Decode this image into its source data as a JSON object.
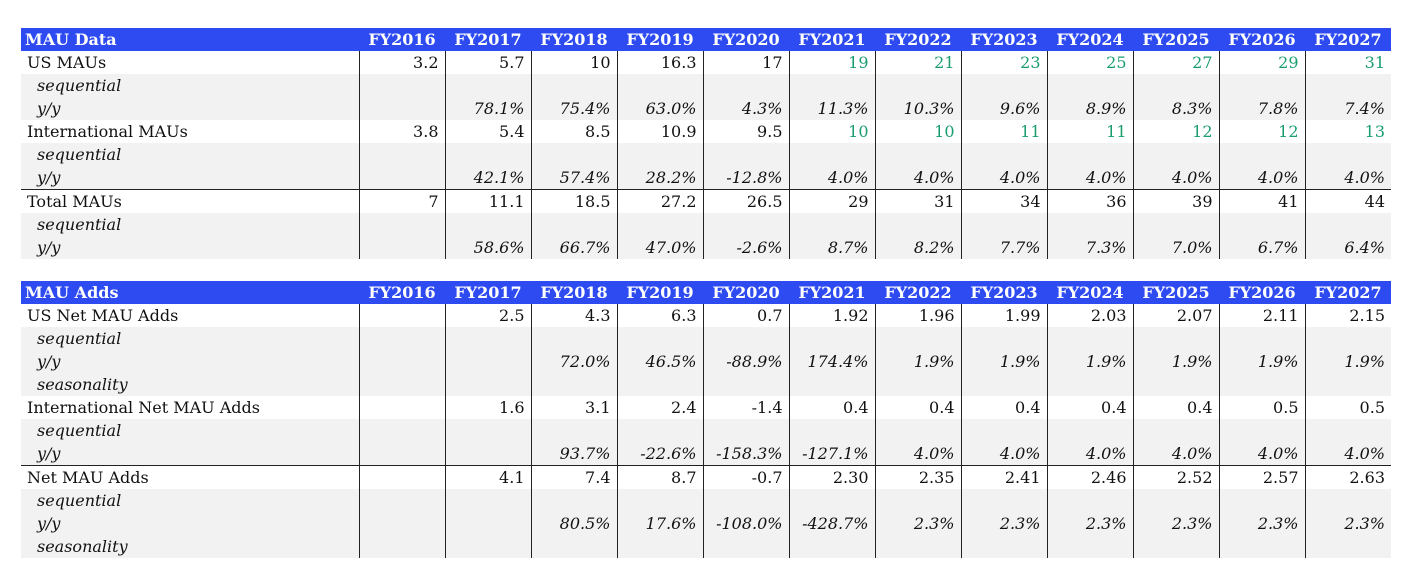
{
  "years": [
    "FY2016",
    "FY2017",
    "FY2018",
    "FY2019",
    "FY2020",
    "FY2021",
    "FY2022",
    "FY2023",
    "FY2024",
    "FY2025",
    "FY2026",
    "FY2027"
  ],
  "colors": {
    "header_bg": "#2e4bf2",
    "header_text": "#ffffff",
    "forecast_green": "#1a9e6e",
    "sub_row_bg": "#f2f2f2"
  },
  "mau_data": {
    "title": "MAU Data",
    "rows": [
      {
        "type": "main",
        "label": "US MAUs",
        "values": [
          "3.2",
          "5.7",
          "10",
          "16.3",
          "17",
          "19",
          "21",
          "23",
          "25",
          "27",
          "29",
          "31"
        ],
        "green_from": 5
      },
      {
        "type": "sub",
        "label": "sequential",
        "values": [
          "",
          "",
          "",
          "",
          "",
          "",
          "",
          "",
          "",
          "",
          "",
          ""
        ]
      },
      {
        "type": "sub",
        "label": "y/y",
        "values": [
          "",
          "78.1%",
          "75.4%",
          "63.0%",
          "4.3%",
          "11.3%",
          "10.3%",
          "9.6%",
          "8.9%",
          "8.3%",
          "7.8%",
          "7.4%"
        ]
      },
      {
        "type": "main",
        "label": "International MAUs",
        "values": [
          "3.8",
          "5.4",
          "8.5",
          "10.9",
          "9.5",
          "10",
          "10",
          "11",
          "11",
          "12",
          "12",
          "13"
        ],
        "green_from": 5
      },
      {
        "type": "sub",
        "label": "sequential",
        "values": [
          "",
          "",
          "",
          "",
          "",
          "",
          "",
          "",
          "",
          "",
          "",
          ""
        ]
      },
      {
        "type": "sub",
        "label": "y/y",
        "values": [
          "",
          "42.1%",
          "57.4%",
          "28.2%",
          "-12.8%",
          "4.0%",
          "4.0%",
          "4.0%",
          "4.0%",
          "4.0%",
          "4.0%",
          "4.0%"
        ]
      },
      {
        "type": "main",
        "label": "Total MAUs",
        "topline": true,
        "values": [
          "7",
          "11.1",
          "18.5",
          "27.2",
          "26.5",
          "29",
          "31",
          "34",
          "36",
          "39",
          "41",
          "44"
        ]
      },
      {
        "type": "sub",
        "label": "sequential",
        "values": [
          "",
          "",
          "",
          "",
          "",
          "",
          "",
          "",
          "",
          "",
          "",
          ""
        ]
      },
      {
        "type": "sub",
        "label": "y/y",
        "values": [
          "",
          "58.6%",
          "66.7%",
          "47.0%",
          "-2.6%",
          "8.7%",
          "8.2%",
          "7.7%",
          "7.3%",
          "7.0%",
          "6.7%",
          "6.4%"
        ]
      }
    ]
  },
  "mau_adds": {
    "title": "MAU Adds",
    "rows": [
      {
        "type": "main",
        "label": "US Net MAU Adds",
        "values": [
          "",
          "2.5",
          "4.3",
          "6.3",
          "0.7",
          "1.92",
          "1.96",
          "1.99",
          "2.03",
          "2.07",
          "2.11",
          "2.15"
        ]
      },
      {
        "type": "sub",
        "label": "sequential",
        "values": [
          "",
          "",
          "",
          "",
          "",
          "",
          "",
          "",
          "",
          "",
          "",
          ""
        ]
      },
      {
        "type": "sub",
        "label": "y/y",
        "values": [
          "",
          "",
          "72.0%",
          "46.5%",
          "-88.9%",
          "174.4%",
          "1.9%",
          "1.9%",
          "1.9%",
          "1.9%",
          "1.9%",
          "1.9%"
        ]
      },
      {
        "type": "sub",
        "label": "seasonality",
        "values": [
          "",
          "",
          "",
          "",
          "",
          "",
          "",
          "",
          "",
          "",
          "",
          ""
        ]
      },
      {
        "type": "main",
        "label": "International Net MAU Adds",
        "values": [
          "",
          "1.6",
          "3.1",
          "2.4",
          "-1.4",
          "0.4",
          "0.4",
          "0.4",
          "0.4",
          "0.4",
          "0.5",
          "0.5"
        ]
      },
      {
        "type": "sub",
        "label": "sequential",
        "values": [
          "",
          "",
          "",
          "",
          "",
          "",
          "",
          "",
          "",
          "",
          "",
          ""
        ]
      },
      {
        "type": "sub",
        "label": "y/y",
        "values": [
          "",
          "",
          "93.7%",
          "-22.6%",
          "-158.3%",
          "-127.1%",
          "4.0%",
          "4.0%",
          "4.0%",
          "4.0%",
          "4.0%",
          "4.0%"
        ]
      },
      {
        "type": "main",
        "label": "Net MAU Adds",
        "topline": true,
        "values": [
          "",
          "4.1",
          "7.4",
          "8.7",
          "-0.7",
          "2.30",
          "2.35",
          "2.41",
          "2.46",
          "2.52",
          "2.57",
          "2.63"
        ]
      },
      {
        "type": "sub",
        "label": "sequential",
        "values": [
          "",
          "",
          "",
          "",
          "",
          "",
          "",
          "",
          "",
          "",
          "",
          ""
        ]
      },
      {
        "type": "sub",
        "label": "y/y",
        "values": [
          "",
          "",
          "80.5%",
          "17.6%",
          "-108.0%",
          "-428.7%",
          "2.3%",
          "2.3%",
          "2.3%",
          "2.3%",
          "2.3%",
          "2.3%"
        ]
      },
      {
        "type": "sub",
        "label": "seasonality",
        "values": [
          "",
          "",
          "",
          "",
          "",
          "",
          "",
          "",
          "",
          "",
          "",
          ""
        ]
      }
    ]
  }
}
